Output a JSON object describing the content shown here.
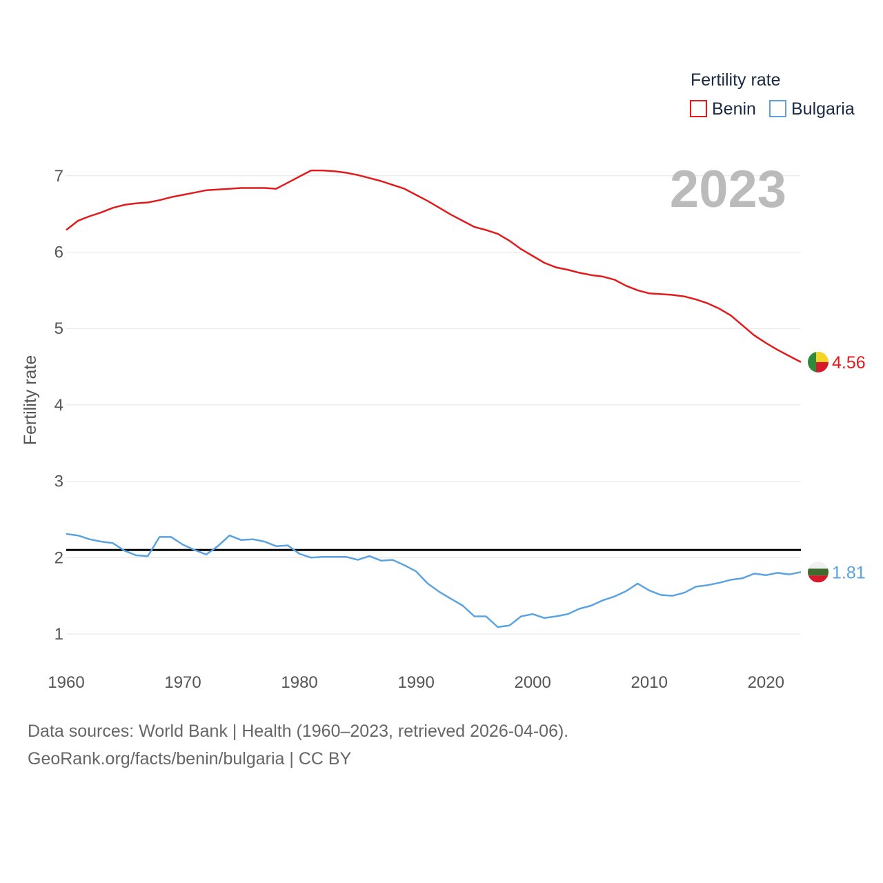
{
  "chart_data": {
    "type": "line",
    "title": "",
    "big_year_label": "2023",
    "xlabel": "",
    "ylabel": "Fertility rate",
    "xlim": [
      1960,
      2023
    ],
    "ylim": [
      0.5,
      7.5
    ],
    "x_ticks": [
      1960,
      1970,
      1980,
      1990,
      2000,
      2010,
      2020
    ],
    "y_ticks": [
      1,
      2,
      3,
      4,
      5,
      6,
      7
    ],
    "grid": true,
    "legend": {
      "title": "Fertility rate",
      "position": "top-right"
    },
    "reference_line": {
      "y": 2.1,
      "color": "#000000"
    },
    "x": [
      1960,
      1961,
      1962,
      1963,
      1964,
      1965,
      1966,
      1967,
      1968,
      1969,
      1970,
      1971,
      1972,
      1973,
      1974,
      1975,
      1976,
      1977,
      1978,
      1979,
      1980,
      1981,
      1982,
      1983,
      1984,
      1985,
      1986,
      1987,
      1988,
      1989,
      1990,
      1991,
      1992,
      1993,
      1994,
      1995,
      1996,
      1997,
      1998,
      1999,
      2000,
      2001,
      2002,
      2003,
      2004,
      2005,
      2006,
      2007,
      2008,
      2009,
      2010,
      2011,
      2012,
      2013,
      2014,
      2015,
      2016,
      2017,
      2018,
      2019,
      2020,
      2021,
      2022,
      2023
    ],
    "series": [
      {
        "name": "Benin",
        "color": "#e31a1c",
        "end_label": "4.56",
        "values": [
          6.29,
          6.41,
          6.47,
          6.52,
          6.58,
          6.62,
          6.64,
          6.65,
          6.68,
          6.72,
          6.75,
          6.78,
          6.81,
          6.82,
          6.83,
          6.84,
          6.84,
          6.84,
          6.83,
          6.91,
          6.99,
          7.07,
          7.07,
          7.06,
          7.04,
          7.01,
          6.97,
          6.93,
          6.88,
          6.83,
          6.75,
          6.67,
          6.58,
          6.49,
          6.41,
          6.33,
          6.29,
          6.24,
          6.15,
          6.04,
          5.95,
          5.86,
          5.8,
          5.77,
          5.73,
          5.7,
          5.68,
          5.64,
          5.56,
          5.5,
          5.46,
          5.45,
          5.44,
          5.42,
          5.38,
          5.33,
          5.26,
          5.17,
          5.04,
          4.91,
          4.81,
          4.72,
          4.64,
          4.56
        ]
      },
      {
        "name": "Bulgaria",
        "color": "#5ba3e0",
        "end_label": "1.81",
        "values": [
          2.31,
          2.29,
          2.24,
          2.21,
          2.19,
          2.09,
          2.03,
          2.02,
          2.27,
          2.27,
          2.17,
          2.1,
          2.04,
          2.15,
          2.29,
          2.23,
          2.24,
          2.21,
          2.15,
          2.16,
          2.05,
          2.0,
          2.01,
          2.01,
          2.01,
          1.97,
          2.02,
          1.96,
          1.97,
          1.9,
          1.82,
          1.66,
          1.55,
          1.46,
          1.37,
          1.23,
          1.23,
          1.09,
          1.11,
          1.23,
          1.26,
          1.21,
          1.23,
          1.26,
          1.33,
          1.37,
          1.44,
          1.49,
          1.56,
          1.66,
          1.57,
          1.51,
          1.5,
          1.54,
          1.62,
          1.64,
          1.67,
          1.71,
          1.73,
          1.79,
          1.77,
          1.8,
          1.78,
          1.81
        ]
      }
    ]
  },
  "footer": {
    "line1": "Data sources: World Bank | Health (1960–2023, retrieved 2026-04-06).",
    "line2": "GeoRank.org/facts/benin/bulgaria | CC BY"
  }
}
